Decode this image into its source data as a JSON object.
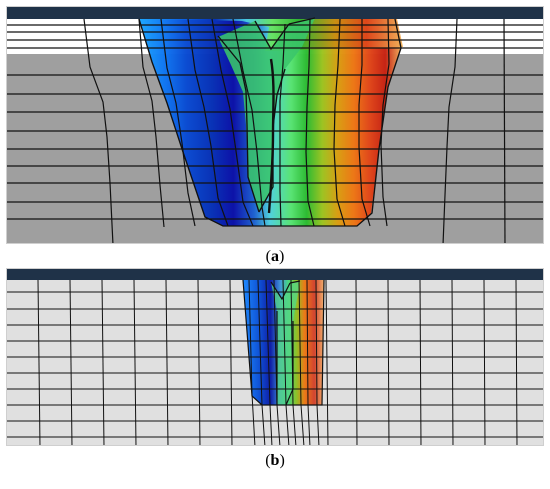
{
  "captions": {
    "panel_a": {
      "open": "(",
      "label": "a",
      "close": ")"
    },
    "panel_b": {
      "open": "(",
      "label": "b",
      "close": ")"
    }
  },
  "colors": {
    "header": "#1f3248",
    "mesh_a": "#9f9f9f",
    "mesh_b": "#e0e0e0",
    "grid": "#111111",
    "upper_layer": "#ffffff"
  },
  "contour_scale": [
    "#1597ff",
    "#0f6ff3",
    "#0848d4",
    "#0626b5",
    "#0b0ca8",
    "#1f2fa6",
    "#2d60d0",
    "#4fd2de",
    "#4fe070",
    "#2eb52f",
    "#58b11f",
    "#9bc120",
    "#d79b10",
    "#ef7412",
    "#e84f18",
    "#d52c14",
    "#c22012",
    "#d4611f",
    "#ee8c33",
    "#efb36c"
  ]
}
